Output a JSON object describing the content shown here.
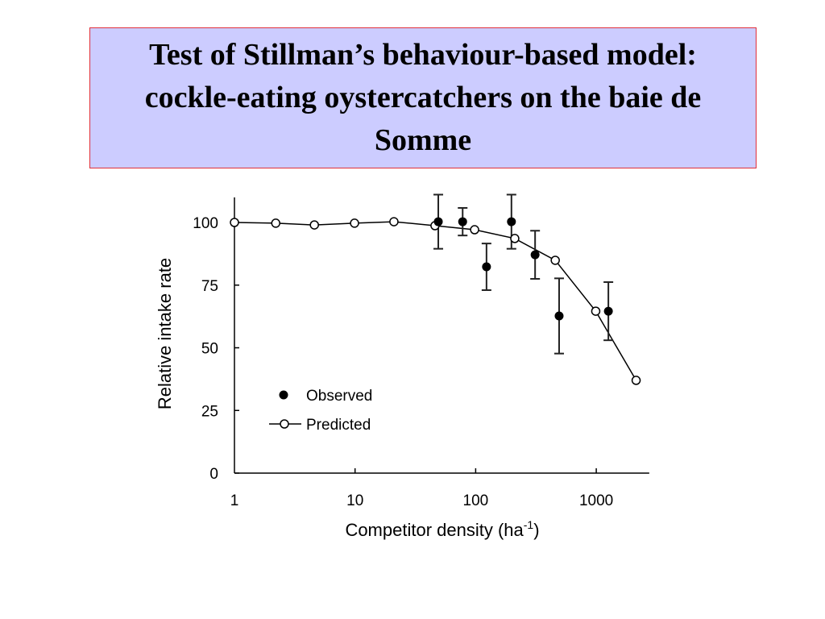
{
  "slide": {
    "title": "Test of Stillman’s behaviour-based model: cockle-eating oystercatchers on the baie de Somme"
  },
  "chart_data": {
    "type": "line",
    "title": "Test of Stillman’s behaviour-based model: cockle-eating oystercatchers on the baie de Somme",
    "xlabel": "Competitor density (ha",
    "xlabel_superscript": "-1",
    "xlabel_suffix": ")",
    "ylabel": "Relative intake rate",
    "xscale": "log",
    "xlim": [
      1,
      2750
    ],
    "ylim": [
      0,
      110
    ],
    "xticks": [
      1,
      10,
      100,
      1000
    ],
    "xtick_labels": [
      "1",
      "10",
      "100",
      "1000"
    ],
    "yticks": [
      0,
      25,
      50,
      75,
      100
    ],
    "ytick_labels": [
      "0",
      "25",
      "50",
      "75",
      "100"
    ],
    "grid": false,
    "legend": {
      "placement": "center-left",
      "entries": [
        "Observed",
        "Predicted"
      ]
    },
    "series": [
      {
        "name": "Predicted",
        "marker": "open-circle",
        "line": true,
        "x": [
          1,
          2.2,
          4.6,
          9.9,
          21,
          46,
          98,
          211,
          457,
          990,
          2140
        ],
        "y": [
          100,
          99.7,
          99,
          99.7,
          100.3,
          98.7,
          97.1,
          93.6,
          84.9,
          64.6,
          37
        ]
      },
      {
        "name": "Observed",
        "marker": "filled-circle",
        "line": false,
        "x": [
          49,
          78,
          123,
          198,
          311,
          492,
          1260
        ],
        "y": [
          100.3,
          100.3,
          82.3,
          100.3,
          87.1,
          62.7,
          64.6
        ],
        "error": [
          10.8,
          5.5,
          9.3,
          10.8,
          9.6,
          15,
          11.6
        ]
      }
    ]
  }
}
